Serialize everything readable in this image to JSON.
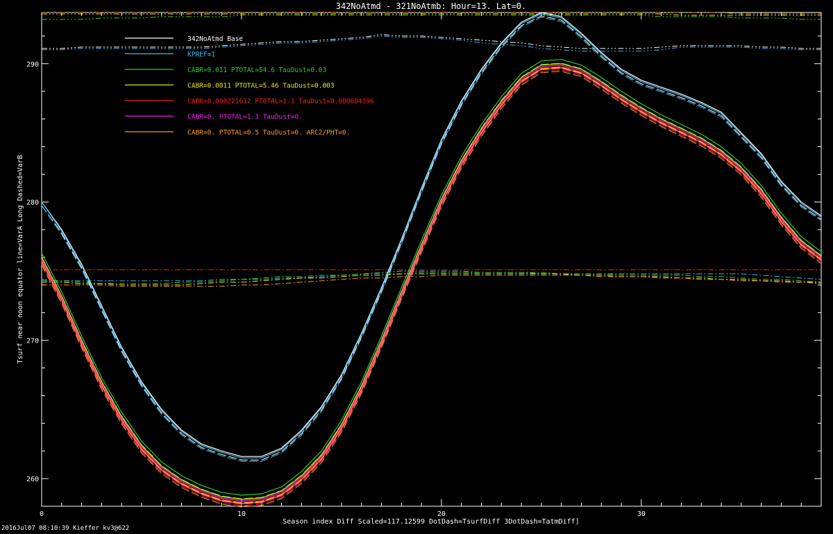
{
  "chart_data": {
    "type": "line",
    "title": "342NoAtmd - 321NoAtmb:  Hour=13.  Lat=0.",
    "xlabel": "Season index    Diff Scaled=117.12599  DotDash=TsurfDiff 3DotDash=TatmDiff]",
    "ylabel": "Tsurf near noon equator    line=VarA Long Dashed=VarB",
    "xlim": [
      0,
      39
    ],
    "ylim": [
      258,
      293.7
    ],
    "xticks": [
      0,
      10,
      20,
      30
    ],
    "yticks": [
      260,
      270,
      280,
      290
    ],
    "x": [
      0,
      1,
      2,
      3,
      4,
      5,
      6,
      7,
      8,
      9,
      10,
      11,
      12,
      13,
      14,
      15,
      16,
      17,
      18,
      19,
      20,
      21,
      22,
      23,
      24,
      25,
      26,
      27,
      28,
      29,
      30,
      31,
      32,
      33,
      34,
      35,
      36,
      37,
      38,
      39
    ],
    "series": [
      {
        "name": "342NoAtmd Base",
        "color": "#ffffff",
        "values": [
          280,
          278,
          275.5,
          272.5,
          269.5,
          267,
          265,
          263.5,
          262.5,
          262,
          261.6,
          261.6,
          262.2,
          263.5,
          265.2,
          267.5,
          270.5,
          273.8,
          277.3,
          281,
          284.5,
          287.3,
          289.6,
          291.5,
          293,
          293.7,
          293.4,
          292.2,
          290.8,
          289.6,
          288.8,
          288.3,
          287.8,
          287.2,
          286.5,
          285,
          283.5,
          281.5,
          280,
          279
        ]
      },
      {
        "name": "KPREF=1",
        "color": "#40b8e8",
        "values": [
          280,
          277.9,
          275.4,
          272.4,
          269.4,
          266.9,
          264.9,
          263.4,
          262.4,
          261.9,
          261.5,
          261.5,
          262.1,
          263.4,
          265.1,
          267.4,
          270.4,
          273.7,
          277.2,
          280.9,
          284.4,
          287.2,
          289.5,
          291.4,
          292.9,
          293.6,
          293.3,
          292.1,
          290.7,
          289.5,
          288.7,
          288.2,
          287.7,
          287.1,
          286.4,
          284.9,
          283.4,
          281.4,
          279.9,
          278.9
        ]
      },
      {
        "name": "CABR=0.011 PTOTAL=54.6 TauDust=0.03",
        "color": "#33cc33",
        "values": [
          276.3,
          273.5,
          270.3,
          267.3,
          264.8,
          262.7,
          261.2,
          260.2,
          259.5,
          259,
          258.8,
          258.9,
          259.4,
          260.5,
          262,
          264.2,
          267,
          270.3,
          273.8,
          277.2,
          280.5,
          283.3,
          285.6,
          287.6,
          289.3,
          290.2,
          290.3,
          289.9,
          289,
          288,
          287.1,
          286.3,
          285.6,
          284.9,
          284,
          282.8,
          281.2,
          279.2,
          277.5,
          276.4
        ]
      },
      {
        "name": "CABR=0.0011 PTOTAL=5.46 TauDust=0.003",
        "color": "#e8e820",
        "values": [
          276,
          273.2,
          270,
          267,
          264.5,
          262.4,
          260.9,
          259.9,
          259.2,
          258.7,
          258.5,
          258.6,
          259.1,
          260.2,
          261.7,
          263.9,
          266.7,
          270,
          273.5,
          276.9,
          280.2,
          283,
          285.3,
          287.3,
          289,
          289.9,
          290,
          289.6,
          288.7,
          287.7,
          286.8,
          286,
          285.3,
          284.6,
          283.7,
          282.5,
          280.9,
          278.9,
          277.2,
          276.1
        ]
      },
      {
        "name": "CABR=0.000221612 PTOTAL=1.1 TauDust=0.000604396",
        "color": "#ee2222",
        "values": [
          275.8,
          273,
          269.8,
          266.8,
          264.3,
          262.2,
          260.7,
          259.7,
          259,
          258.5,
          258.3,
          258.4,
          258.9,
          260,
          261.5,
          263.7,
          266.5,
          269.8,
          273.3,
          276.7,
          280,
          282.8,
          285.1,
          287.1,
          288.8,
          289.7,
          289.8,
          289.4,
          288.5,
          287.5,
          286.6,
          285.8,
          285.1,
          284.4,
          283.5,
          282.3,
          280.7,
          278.7,
          277,
          275.9
        ]
      },
      {
        "name": "CABR=0. PTOTAL=1.1 TauDust=0.",
        "color": "#ee22ee",
        "values": [
          275.9,
          273.1,
          269.9,
          266.9,
          264.4,
          262.3,
          260.8,
          259.8,
          259.1,
          258.6,
          258.4,
          258.5,
          259,
          260.1,
          261.6,
          263.8,
          266.6,
          269.9,
          273.4,
          276.8,
          280.1,
          282.9,
          285.2,
          287.2,
          288.9,
          289.8,
          289.9,
          289.5,
          288.6,
          287.6,
          286.7,
          285.9,
          285.2,
          284.5,
          283.6,
          282.4,
          280.8,
          278.8,
          277.1,
          276
        ]
      },
      {
        "name": "CABR=0. PTOTAL=0.5 TauDust=0. ARC2/PHT=0.",
        "color": "#ff9922",
        "values": [
          275.7,
          272.9,
          269.7,
          266.7,
          264.2,
          262.1,
          260.6,
          259.6,
          258.9,
          258.4,
          258.2,
          258.3,
          258.8,
          259.9,
          261.4,
          263.6,
          266.4,
          269.7,
          273.2,
          276.6,
          279.9,
          282.7,
          285,
          287,
          288.7,
          289.6,
          289.7,
          289.3,
          288.4,
          287.4,
          286.5,
          285.7,
          285,
          284.3,
          283.4,
          282.2,
          280.6,
          278.6,
          276.9,
          275.8
        ]
      }
    ],
    "diff_series": [
      {
        "name": "KPREF=1",
        "color": "#40b8e8",
        "kind": "TsurfDiff",
        "values": [
          274.3,
          274.3,
          274.3,
          274.3,
          274.3,
          274.3,
          274.3,
          274.3,
          274.3,
          274.4,
          274.4,
          274.4,
          274.5,
          274.5,
          274.6,
          274.7,
          274.8,
          274.9,
          275,
          275,
          275,
          275,
          274.9,
          274.9,
          274.9,
          274.8,
          274.8,
          274.8,
          274.8,
          274.8,
          274.8,
          274.8,
          274.8,
          274.8,
          274.8,
          274.8,
          274.7,
          274.6,
          274.5,
          274.4
        ]
      },
      {
        "name": "CABR=0.011 PTOTAL=54.6 TauDust=0.03",
        "color": "#33cc33",
        "kind": "TsurfDiff",
        "values": [
          274.4,
          274.3,
          274.2,
          274.1,
          274.1,
          274.1,
          274.1,
          274.2,
          274.2,
          274.3,
          274.4,
          274.5,
          274.6,
          274.6,
          274.7,
          274.7,
          274.8,
          274.8,
          274.8,
          274.9,
          274.9,
          274.9,
          274.9,
          274.9,
          274.9,
          274.9,
          274.8,
          274.8,
          274.8,
          274.7,
          274.7,
          274.7,
          274.7,
          274.6,
          274.6,
          274.5,
          274.4,
          274.4,
          274.3,
          274.2
        ]
      },
      {
        "name": "CABR=0.0011 PTOTAL=5.46 TauDust=0.003",
        "color": "#e8e820",
        "kind": "TsurfDiff",
        "values": [
          274.2,
          274.2,
          274.1,
          274.1,
          274,
          274,
          274,
          274,
          274.1,
          274.2,
          274.2,
          274.3,
          274.4,
          274.5,
          274.5,
          274.6,
          274.7,
          274.7,
          274.8,
          274.8,
          274.8,
          274.8,
          274.8,
          274.8,
          274.8,
          274.8,
          274.8,
          274.7,
          274.7,
          274.6,
          274.6,
          274.6,
          274.5,
          274.5,
          274.4,
          274.4,
          274.3,
          274.3,
          274.2,
          274.2
        ]
      },
      {
        "name": "CABR=0.000221612 PTOTAL=1.1 TauDust=0.000604396",
        "color": "#ee2222",
        "kind": "TsurfDiff",
        "values": [
          275.1,
          275.1,
          275.1,
          275.1,
          275.1,
          275.1,
          275.1,
          275.1,
          275.1,
          275.1,
          275.1,
          275.1,
          275.1,
          275.1,
          275.1,
          275.1,
          275.1,
          275.1,
          275.1,
          275.1,
          275.1,
          275.1,
          275.1,
          275.1,
          275.1,
          275.1,
          275.1,
          275.1,
          275.1,
          275.1,
          275.1,
          275.1,
          275.1,
          275.1,
          275.1,
          275.1,
          275.1,
          275.1,
          275.1,
          275.1
        ]
      },
      {
        "name": "CABR=0. PTOTAL=0.5 TauDust=0. ARC2/PHT=0.",
        "color": "#ff9922",
        "kind": "TsurfDiff",
        "values": [
          274,
          274,
          274,
          274,
          273.9,
          273.9,
          273.9,
          273.9,
          273.9,
          273.9,
          274,
          274,
          274.1,
          274.2,
          274.3,
          274.4,
          274.5,
          274.5,
          274.6,
          274.6,
          274.7,
          274.7,
          274.7,
          274.7,
          274.7,
          274.7,
          274.7,
          274.7,
          274.6,
          274.6,
          274.6,
          274.5,
          274.5,
          274.4,
          274.4,
          274.3,
          274.3,
          274.2,
          274.2,
          274.1
        ]
      },
      {
        "name": "342NoAtmd Base",
        "color": "#ffffff",
        "kind": "TatmDiff",
        "values": [
          291.1,
          291.1,
          291.2,
          291.2,
          291.2,
          291.2,
          291.2,
          291.2,
          291.2,
          291.3,
          291.4,
          291.5,
          291.6,
          291.6,
          291.7,
          291.8,
          291.9,
          292.1,
          292,
          292,
          291.9,
          291.8,
          291.7,
          291.6,
          291.5,
          291.3,
          291.2,
          291.1,
          291.1,
          291.1,
          291.1,
          291.2,
          291.3,
          291.3,
          291.3,
          291.3,
          291.2,
          291.2,
          291.1,
          291.1
        ]
      },
      {
        "name": "KPREF=1",
        "color": "#40b8e8",
        "kind": "TatmDiff",
        "values": [
          291,
          291,
          291.1,
          291.1,
          291.1,
          291.1,
          291.1,
          291.1,
          291.1,
          291.2,
          291.3,
          291.4,
          291.5,
          291.5,
          291.6,
          291.7,
          291.8,
          292,
          291.9,
          291.9,
          291.8,
          291.7,
          291.5,
          291.4,
          291.3,
          291.1,
          291,
          290.9,
          290.9,
          290.9,
          290.9,
          291,
          291.2,
          291.2,
          291.2,
          291.2,
          291.1,
          291.1,
          291,
          291
        ]
      },
      {
        "name": "CABR=0.011 PTOTAL=54.6 TauDust=0.03",
        "color": "#33cc33",
        "kind": "TatmDiff",
        "values": [
          293.2,
          293.2,
          293.2,
          293.3,
          293.3,
          293.3,
          293.4,
          293.4,
          293.4,
          293.4,
          293.5,
          293.5,
          293.5,
          293.5,
          293.5,
          293.5,
          293.5,
          293.5,
          293.5,
          293.5,
          293.5,
          293.5,
          293.5,
          293.5,
          293.5,
          293.5,
          293.5,
          293.5,
          293.5,
          293.5,
          293.5,
          293.4,
          293.4,
          293.4,
          293.4,
          293.3,
          293.3,
          293.3,
          293.2,
          293.2
        ]
      },
      {
        "name": "CABR=0.0011 PTOTAL=5.46 TauDust=0.003",
        "color": "#e8e820",
        "kind": "TatmDiff",
        "values": [
          293.6,
          293.6,
          293.6,
          293.6,
          293.6,
          293.6,
          293.6,
          293.6,
          293.6,
          293.6,
          293.6,
          293.6,
          293.6,
          293.6,
          293.6,
          293.6,
          293.6,
          293.6,
          293.6,
          293.6,
          293.6,
          293.6,
          293.6,
          293.6,
          293.6,
          293.6,
          293.6,
          293.6,
          293.6,
          293.6,
          293.6,
          293.6,
          293.5,
          293.5,
          293.5,
          293.5,
          293.5,
          293.5,
          293.5,
          293.5
        ]
      },
      {
        "name": "CABR=0. PTOTAL=0.5 TauDust=0. ARC2/PHT=0.",
        "color": "#ff9922",
        "kind": "TatmDiff",
        "values": [
          293.7,
          293.7,
          293.7,
          293.7,
          293.7,
          293.7,
          293.7,
          293.7,
          293.7,
          293.7,
          293.7,
          293.7,
          293.7,
          293.7,
          293.7,
          293.7,
          293.7,
          293.7,
          293.7,
          293.7,
          293.7,
          293.7,
          293.7,
          293.7,
          293.7,
          293.7,
          293.7,
          293.7,
          293.7,
          293.7,
          293.7,
          293.7,
          293.7,
          293.7,
          293.7,
          293.6,
          293.6,
          293.6,
          293.6,
          293.6
        ]
      }
    ],
    "legend": [
      {
        "label": "342NoAtmd Base",
        "color": "#ffffff"
      },
      {
        "label": "KPREF=1",
        "color": "#40b8e8"
      },
      {
        "label": "CABR=0.011 PTOTAL=54.6 TauDust=0.03",
        "color": "#33cc33"
      },
      {
        "label": "CABR=0.0011 PTOTAL=5.46 TauDust=0.003",
        "color": "#e8e820"
      },
      {
        "label": "CABR=0.000221612 PTOTAL=1.1 TauDust=0.000604396",
        "color": "#ee2222"
      },
      {
        "label": "CABR=0. PTOTAL=1.1 TauDust=0.",
        "color": "#ee22ee"
      },
      {
        "label": "CABR=0. PTOTAL=0.5 TauDust=0. ARC2/PHT=0.",
        "color": "#ff9922"
      }
    ],
    "legend_position": "top-left",
    "grid": false
  },
  "footer": "2016Jul07 08:10:39 Kieffer kv3@622"
}
